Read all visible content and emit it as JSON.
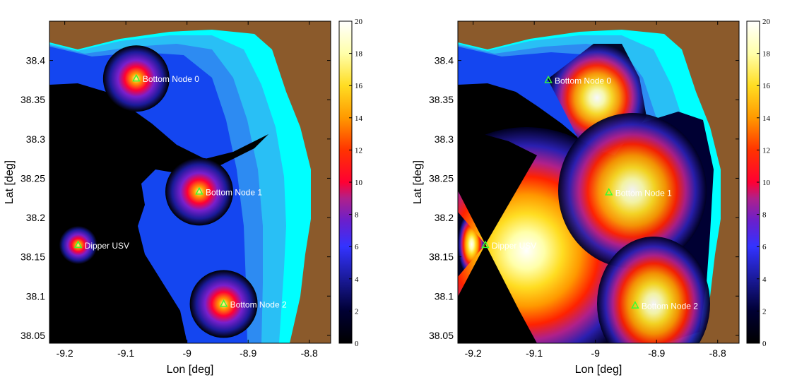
{
  "chart_data": [
    {
      "type": "heatmap",
      "title": "",
      "xlabel": "Lon [deg]",
      "ylabel": "Lat [deg]",
      "xlim": [
        -9.225,
        -8.765
      ],
      "ylim": [
        38.04,
        38.45
      ],
      "xticks": [
        "-9.2",
        "-9.1",
        "-9",
        "-8.9",
        "-8.8"
      ],
      "xtick_values": [
        -9.2,
        -9.1,
        -9.0,
        -8.9,
        -8.8
      ],
      "yticks": [
        "38.05",
        "38.1",
        "38.15",
        "38.2",
        "38.25",
        "38.3",
        "38.35",
        "38.4"
      ],
      "ytick_values": [
        38.05,
        38.1,
        38.15,
        38.2,
        38.25,
        38.3,
        38.35,
        38.4
      ],
      "colorbar": {
        "min": 0,
        "max": 20,
        "levels": 20,
        "ticks": [
          "0",
          "2",
          "4",
          "6",
          "8",
          "10",
          "12",
          "14",
          "16",
          "18",
          "20"
        ]
      },
      "land_color": "#8b5a2b",
      "nodes": [
        {
          "label": "Bottom Node 0",
          "lon": -9.083,
          "lat": 38.377
        },
        {
          "label": "Bottom Node 1",
          "lon": -8.98,
          "lat": 38.233
        },
        {
          "label": "Dipper USV",
          "lon": -9.178,
          "lat": 38.165
        },
        {
          "label": "Bottom Node 2",
          "lon": -8.94,
          "lat": 38.09
        }
      ]
    },
    {
      "type": "heatmap",
      "title": "",
      "xlabel": "Lon [deg]",
      "ylabel": "Lat [deg]",
      "xlim": [
        -9.225,
        -8.765
      ],
      "ylim": [
        38.04,
        38.45
      ],
      "xticks": [
        "-9.2",
        "-9.1",
        "-9",
        "-8.9",
        "-8.8"
      ],
      "xtick_values": [
        -9.2,
        -9.1,
        -9.0,
        -8.9,
        -8.8
      ],
      "yticks": [
        "38.05",
        "38.1",
        "38.15",
        "38.2",
        "38.25",
        "38.3",
        "38.35",
        "38.4"
      ],
      "ytick_values": [
        38.05,
        38.1,
        38.15,
        38.2,
        38.25,
        38.3,
        38.35,
        38.4
      ],
      "colorbar": {
        "min": 0,
        "max": 20,
        "levels": 20,
        "ticks": [
          "0",
          "2",
          "4",
          "6",
          "8",
          "10",
          "12",
          "14",
          "16",
          "18",
          "20"
        ]
      },
      "land_color": "#8b5a2b",
      "nodes": [
        {
          "label": "Bottom Node 0",
          "lon": -9.077,
          "lat": 38.375
        },
        {
          "label": "Bottom Node 1",
          "lon": -8.978,
          "lat": 38.232
        },
        {
          "label": "Dipper USV",
          "lon": -9.18,
          "lat": 38.165
        },
        {
          "label": "Bottom Node 2",
          "lon": -8.935,
          "lat": 38.088
        }
      ]
    }
  ]
}
